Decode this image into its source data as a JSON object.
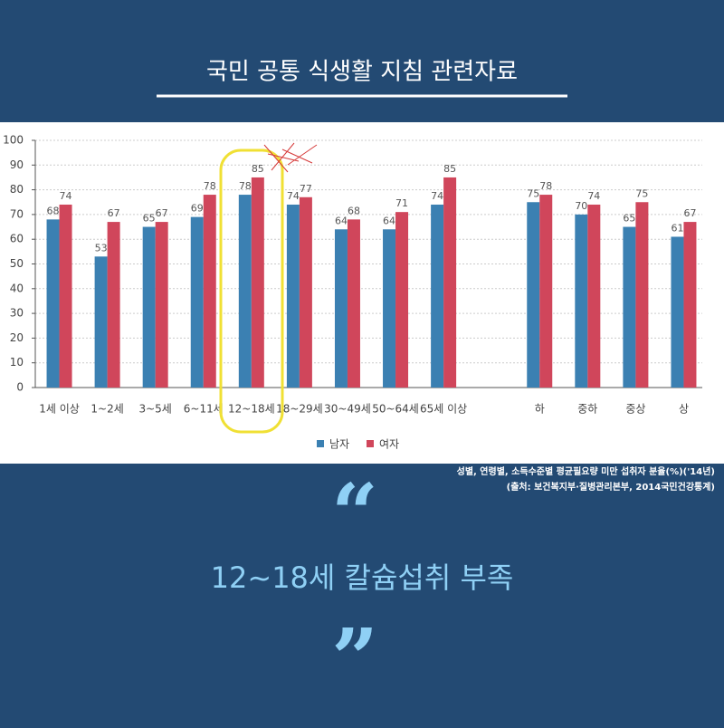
{
  "header": {
    "title": "국민 공통 식생활 지침 관련자료"
  },
  "chart_data": {
    "type": "bar",
    "categories": [
      "1세 이상",
      "1~2세",
      "3~5세",
      "6~11세",
      "12~18세",
      "18~29세",
      "30~49세",
      "50~64세",
      "65세 이상",
      null,
      "하",
      "중하",
      "중상",
      "상"
    ],
    "series": [
      {
        "name": "남자",
        "color": "#3b80b2",
        "values": [
          68,
          53,
          65,
          69,
          78,
          74,
          64,
          64,
          74,
          null,
          75,
          70,
          65,
          61
        ]
      },
      {
        "name": "여자",
        "color": "#d0465b",
        "values": [
          74,
          67,
          67,
          78,
          85,
          77,
          68,
          71,
          85,
          null,
          78,
          74,
          75,
          67
        ]
      }
    ],
    "ylim": [
      0,
      100
    ],
    "yticks": [
      0,
      10,
      20,
      30,
      40,
      50,
      60,
      70,
      80,
      90,
      100
    ],
    "grid": true,
    "legend": "bottom"
  },
  "caption": [
    "성별, 연령별, 소득수준별 평균필요량 미만 섭취자 분율(%)('14년)",
    "(출처: 보건복지부·질병관리본부, 2014국민건강통계)"
  ],
  "quote": {
    "open": "“",
    "text": "12~18세 칼슘섭취 부족",
    "close": "”"
  }
}
